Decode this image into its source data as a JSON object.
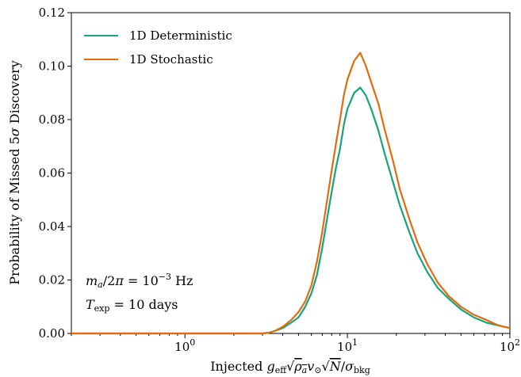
{
  "chart_data": {
    "type": "line",
    "xlabel": "Injected g_eff √ρ_a v_⊙ √N / σ_bkg",
    "ylabel": "Probability of Missed 5σ Discovery",
    "xscale": "log",
    "xlim": [
      0.2,
      100
    ],
    "ylim": [
      0,
      0.12
    ],
    "x_ticks": [
      1,
      10,
      100
    ],
    "x_tick_labels": [
      "10^0",
      "10^1",
      "10^2"
    ],
    "y_ticks": [
      0.0,
      0.02,
      0.04,
      0.06,
      0.08,
      0.1,
      0.12
    ],
    "y_tick_labels": [
      "0.00",
      "0.02",
      "0.04",
      "0.06",
      "0.08",
      "0.10",
      "0.12"
    ],
    "grid": false,
    "legend_position": "top-left",
    "annotations": [
      "m_a/2π = 10^−3 Hz",
      "T_exp = 10 days"
    ],
    "series": [
      {
        "name": "1D Deterministic",
        "color": "#1aa37a",
        "x": [
          0.2,
          1,
          2,
          3,
          3.3,
          3.6,
          4.0,
          4.5,
          5.0,
          5.5,
          6.0,
          6.5,
          7.0,
          7.5,
          8.0,
          8.5,
          9.0,
          9.5,
          10.0,
          11.0,
          12.0,
          13.0,
          14.0,
          15.5,
          17.0,
          19.0,
          21.0,
          24.0,
          27.0,
          31.0,
          36.0,
          42.0,
          50.0,
          60.0,
          72.0,
          85.0,
          100.0
        ],
        "y": [
          0.0,
          0.0,
          0.0,
          0.0,
          0.0003,
          0.001,
          0.002,
          0.004,
          0.006,
          0.01,
          0.015,
          0.022,
          0.032,
          0.043,
          0.053,
          0.062,
          0.069,
          0.078,
          0.084,
          0.09,
          0.092,
          0.089,
          0.084,
          0.076,
          0.067,
          0.057,
          0.048,
          0.038,
          0.03,
          0.023,
          0.017,
          0.013,
          0.009,
          0.006,
          0.004,
          0.003,
          0.002
        ]
      },
      {
        "name": "1D Stochastic",
        "color": "#e06c10",
        "x": [
          0.2,
          1,
          2,
          3,
          3.3,
          3.6,
          4.0,
          4.5,
          5.0,
          5.5,
          6.0,
          6.5,
          7.0,
          7.5,
          8.0,
          8.5,
          9.0,
          9.5,
          10.0,
          11.0,
          12.0,
          13.0,
          14.0,
          15.5,
          17.0,
          19.0,
          21.0,
          24.0,
          27.0,
          31.0,
          36.0,
          42.0,
          50.0,
          60.0,
          72.0,
          85.0,
          100.0
        ],
        "y": [
          0.0,
          0.0,
          0.0,
          0.0,
          0.0003,
          0.001,
          0.0025,
          0.005,
          0.008,
          0.012,
          0.018,
          0.027,
          0.038,
          0.05,
          0.061,
          0.071,
          0.08,
          0.089,
          0.095,
          0.102,
          0.105,
          0.1,
          0.094,
          0.086,
          0.076,
          0.065,
          0.054,
          0.043,
          0.034,
          0.026,
          0.019,
          0.014,
          0.01,
          0.007,
          0.005,
          0.003,
          0.002
        ]
      }
    ]
  }
}
